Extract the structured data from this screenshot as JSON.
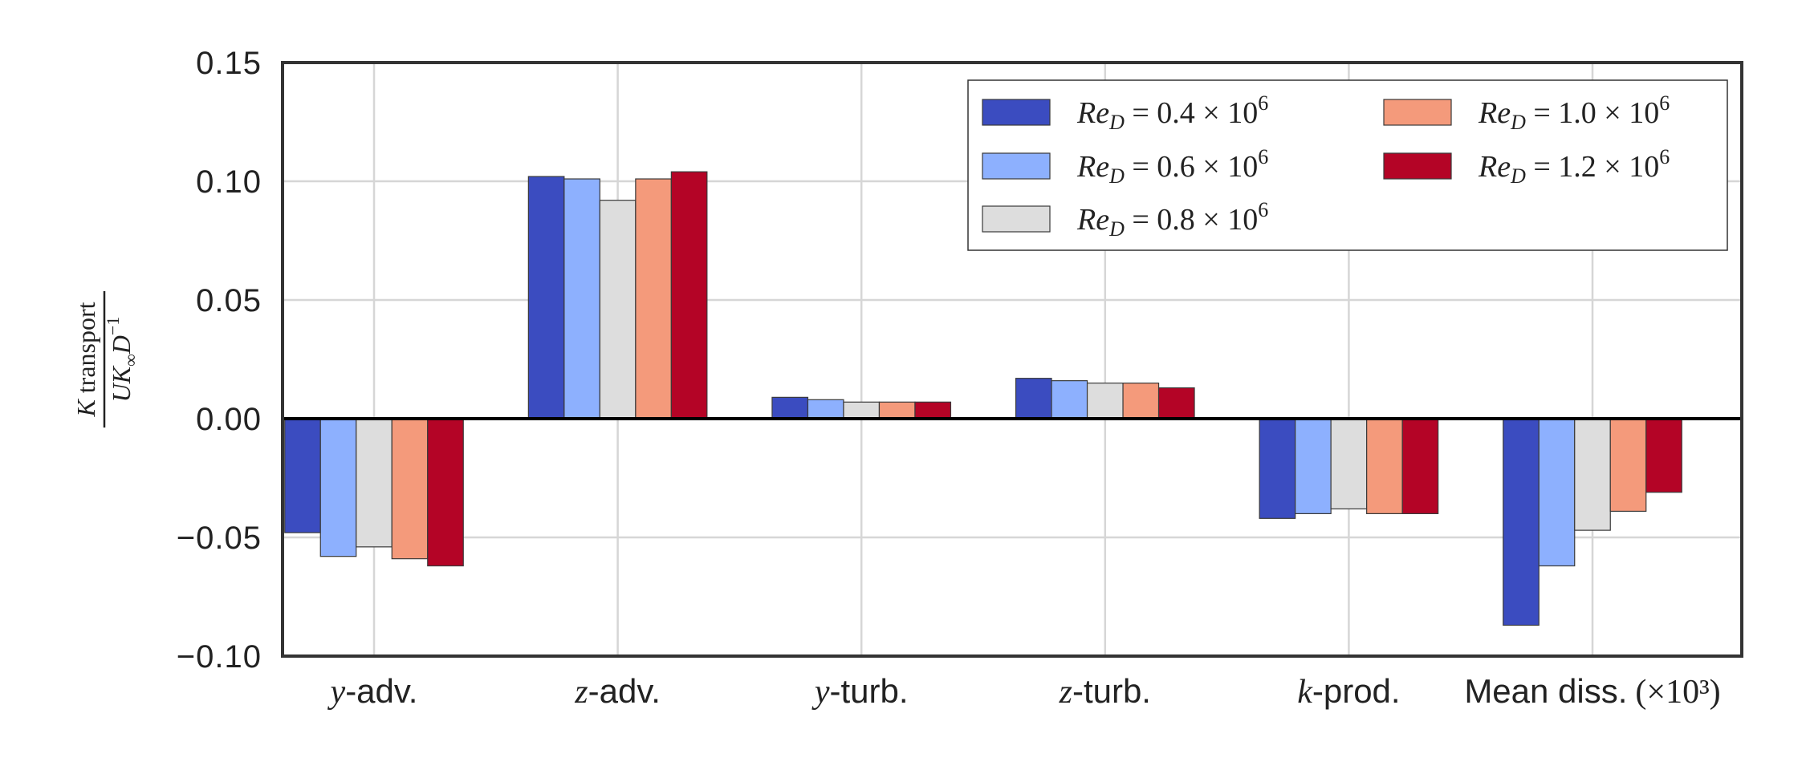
{
  "chart_data": {
    "type": "bar",
    "categories": [
      {
        "var": "y",
        "rest": "-adv.",
        "suffix": ""
      },
      {
        "var": "z",
        "rest": "-adv.",
        "suffix": ""
      },
      {
        "var": "y",
        "rest": "-turb.",
        "suffix": ""
      },
      {
        "var": "z",
        "rest": "-turb.",
        "suffix": ""
      },
      {
        "var": "k",
        "rest": "-prod.",
        "suffix": ""
      },
      {
        "var": "",
        "rest": "Mean diss.",
        "suffix": "(×10³)"
      }
    ],
    "series": [
      {
        "name": "Re_D = 0.4 × 10^6",
        "re": "0.4",
        "color": "#3b4cc0",
        "values": [
          -0.048,
          0.102,
          0.009,
          0.017,
          -0.042,
          -0.087
        ]
      },
      {
        "name": "Re_D = 0.6 × 10^6",
        "re": "0.6",
        "color": "#8db0fe",
        "values": [
          -0.058,
          0.101,
          0.008,
          0.016,
          -0.04,
          -0.062
        ]
      },
      {
        "name": "Re_D = 0.8 × 10^6",
        "re": "0.8",
        "color": "#dddddd",
        "values": [
          -0.054,
          0.092,
          0.007,
          0.015,
          -0.038,
          -0.047
        ]
      },
      {
        "name": "Re_D = 1.0 × 10^6",
        "re": "1.0",
        "color": "#f49a7b",
        "values": [
          -0.059,
          0.101,
          0.007,
          0.015,
          -0.04,
          -0.039
        ]
      },
      {
        "name": "Re_D = 1.2 × 10^6",
        "re": "1.2",
        "color": "#b40426",
        "values": [
          -0.062,
          0.104,
          0.007,
          0.013,
          -0.04,
          -0.031
        ]
      }
    ],
    "ylim": [
      -0.1,
      0.15
    ],
    "yticks": [
      "0.15",
      "0.10",
      "0.05",
      "0.00",
      "−0.05",
      "−0.10"
    ],
    "ytick_values": [
      0.15,
      0.1,
      0.05,
      0.0,
      -0.05,
      -0.1
    ],
    "ylabel": {
      "numerator_var": "K",
      "numerator_text": "transport",
      "denominator_var": "UK",
      "denominator_sub": "∞",
      "denominator_tail": "D",
      "denominator_sup": "−1"
    },
    "grid": true,
    "legend": "top-right",
    "legend_columns": 2,
    "legend_prefix": "Re",
    "legend_prefix_sub": "D",
    "legend_power": "10",
    "legend_exponent": "6"
  }
}
